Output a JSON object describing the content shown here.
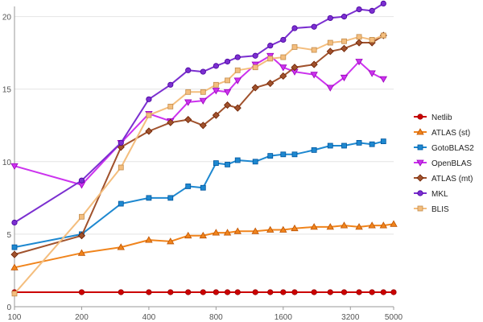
{
  "chart_data": {
    "type": "line",
    "x_scale": "log",
    "x_ticks": [
      {
        "value": 100,
        "label": "100"
      },
      {
        "value": 200,
        "label": "200"
      },
      {
        "value": 400,
        "label": "400"
      },
      {
        "value": 800,
        "label": "800"
      },
      {
        "value": 1600,
        "label": "1600"
      },
      {
        "value": 3200,
        "label": "3200"
      },
      {
        "value": 5000,
        "label": "5000"
      }
    ],
    "y_ticks": [
      {
        "value": 0,
        "label": "0"
      },
      {
        "value": 5,
        "label": "5"
      },
      {
        "value": 10,
        "label": "10"
      },
      {
        "value": 15,
        "label": "15"
      },
      {
        "value": 20,
        "label": "20"
      }
    ],
    "xlim": [
      100,
      5000
    ],
    "ylim": [
      0,
      20
    ],
    "grid": "horizontal",
    "legend_position": "right",
    "series": [
      {
        "name": "Netlib",
        "color": "#cc0000",
        "marker": "circle",
        "points": [
          [
            100,
            1.0
          ],
          [
            200,
            1.0
          ],
          [
            300,
            1.0
          ],
          [
            400,
            1.0
          ],
          [
            500,
            1.0
          ],
          [
            600,
            1.0
          ],
          [
            700,
            1.0
          ],
          [
            800,
            1.0
          ],
          [
            900,
            1.0
          ],
          [
            1000,
            1.0
          ],
          [
            1200,
            1.0
          ],
          [
            1400,
            1.0
          ],
          [
            1600,
            1.0
          ],
          [
            1800,
            1.0
          ],
          [
            2200,
            1.0
          ],
          [
            2600,
            1.0
          ],
          [
            3000,
            1.0
          ],
          [
            3500,
            1.0
          ],
          [
            4000,
            1.0
          ],
          [
            4500,
            1.0
          ],
          [
            5000,
            1.0
          ]
        ]
      },
      {
        "name": "ATLAS (st)",
        "color": "#f0841c",
        "marker": "triangle",
        "points": [
          [
            100,
            2.7
          ],
          [
            200,
            3.7
          ],
          [
            300,
            4.1
          ],
          [
            400,
            4.6
          ],
          [
            500,
            4.5
          ],
          [
            600,
            4.9
          ],
          [
            700,
            4.9
          ],
          [
            800,
            5.1
          ],
          [
            900,
            5.1
          ],
          [
            1000,
            5.2
          ],
          [
            1200,
            5.2
          ],
          [
            1400,
            5.3
          ],
          [
            1600,
            5.3
          ],
          [
            1800,
            5.4
          ],
          [
            2200,
            5.5
          ],
          [
            2600,
            5.5
          ],
          [
            3000,
            5.6
          ],
          [
            3500,
            5.5
          ],
          [
            4000,
            5.6
          ],
          [
            4500,
            5.6
          ],
          [
            5000,
            5.7
          ]
        ]
      },
      {
        "name": "GotoBLAS2",
        "color": "#1e88d0",
        "marker": "square",
        "points": [
          [
            100,
            4.1
          ],
          [
            200,
            5.0
          ],
          [
            300,
            7.1
          ],
          [
            400,
            7.5
          ],
          [
            500,
            7.5
          ],
          [
            600,
            8.3
          ],
          [
            700,
            8.2
          ],
          [
            800,
            9.9
          ],
          [
            900,
            9.8
          ],
          [
            1000,
            10.1
          ],
          [
            1200,
            10.0
          ],
          [
            1400,
            10.4
          ],
          [
            1600,
            10.5
          ],
          [
            1800,
            10.5
          ],
          [
            2200,
            10.8
          ],
          [
            2600,
            11.1
          ],
          [
            3000,
            11.1
          ],
          [
            3500,
            11.3
          ],
          [
            4000,
            11.2
          ],
          [
            4500,
            11.4
          ]
        ]
      },
      {
        "name": "OpenBLAS",
        "color": "#cc33ee",
        "marker": "triangle-down",
        "points": [
          [
            100,
            9.7
          ],
          [
            200,
            8.4
          ],
          [
            300,
            11.3
          ],
          [
            400,
            13.3
          ],
          [
            500,
            12.8
          ],
          [
            600,
            14.1
          ],
          [
            700,
            14.2
          ],
          [
            800,
            14.9
          ],
          [
            900,
            14.8
          ],
          [
            1000,
            15.6
          ],
          [
            1200,
            16.7
          ],
          [
            1400,
            17.3
          ],
          [
            1600,
            16.5
          ],
          [
            1800,
            16.2
          ],
          [
            2200,
            16.0
          ],
          [
            2600,
            15.1
          ],
          [
            3000,
            15.8
          ],
          [
            3500,
            16.9
          ],
          [
            4000,
            16.1
          ],
          [
            4500,
            15.7
          ]
        ]
      },
      {
        "name": "ATLAS (mt)",
        "color": "#a0522d",
        "marker": "diamond",
        "points": [
          [
            100,
            3.6
          ],
          [
            200,
            4.9
          ],
          [
            300,
            11.0
          ],
          [
            400,
            12.1
          ],
          [
            500,
            12.7
          ],
          [
            600,
            12.9
          ],
          [
            700,
            12.5
          ],
          [
            800,
            13.2
          ],
          [
            900,
            13.9
          ],
          [
            1000,
            13.7
          ],
          [
            1200,
            15.1
          ],
          [
            1400,
            15.4
          ],
          [
            1600,
            15.9
          ],
          [
            1800,
            16.5
          ],
          [
            2200,
            16.7
          ],
          [
            2600,
            17.6
          ],
          [
            3000,
            17.8
          ],
          [
            3500,
            18.2
          ],
          [
            4000,
            18.2
          ],
          [
            4500,
            18.7
          ]
        ]
      },
      {
        "name": "MKL",
        "color": "#7b2fd0",
        "marker": "circle",
        "points": [
          [
            100,
            5.8
          ],
          [
            200,
            8.7
          ],
          [
            300,
            11.3
          ],
          [
            400,
            14.3
          ],
          [
            500,
            15.3
          ],
          [
            600,
            16.3
          ],
          [
            700,
            16.2
          ],
          [
            800,
            16.6
          ],
          [
            900,
            16.9
          ],
          [
            1000,
            17.2
          ],
          [
            1200,
            17.3
          ],
          [
            1400,
            18.0
          ],
          [
            1600,
            18.4
          ],
          [
            1800,
            19.2
          ],
          [
            2200,
            19.3
          ],
          [
            2600,
            19.9
          ],
          [
            3000,
            20.0
          ],
          [
            3500,
            20.5
          ],
          [
            4000,
            20.4
          ],
          [
            4500,
            20.9
          ]
        ]
      },
      {
        "name": "BLIS",
        "color": "#f4be7e",
        "marker": "square",
        "points": [
          [
            100,
            0.9
          ],
          [
            200,
            6.2
          ],
          [
            300,
            9.6
          ],
          [
            400,
            13.2
          ],
          [
            500,
            13.8
          ],
          [
            600,
            14.8
          ],
          [
            700,
            14.8
          ],
          [
            800,
            15.3
          ],
          [
            900,
            15.6
          ],
          [
            1000,
            16.3
          ],
          [
            1200,
            16.5
          ],
          [
            1400,
            17.1
          ],
          [
            1600,
            17.2
          ],
          [
            1800,
            17.9
          ],
          [
            2200,
            17.7
          ],
          [
            2600,
            18.2
          ],
          [
            3000,
            18.3
          ],
          [
            3500,
            18.6
          ],
          [
            4000,
            18.4
          ],
          [
            4500,
            18.7
          ]
        ]
      }
    ]
  }
}
